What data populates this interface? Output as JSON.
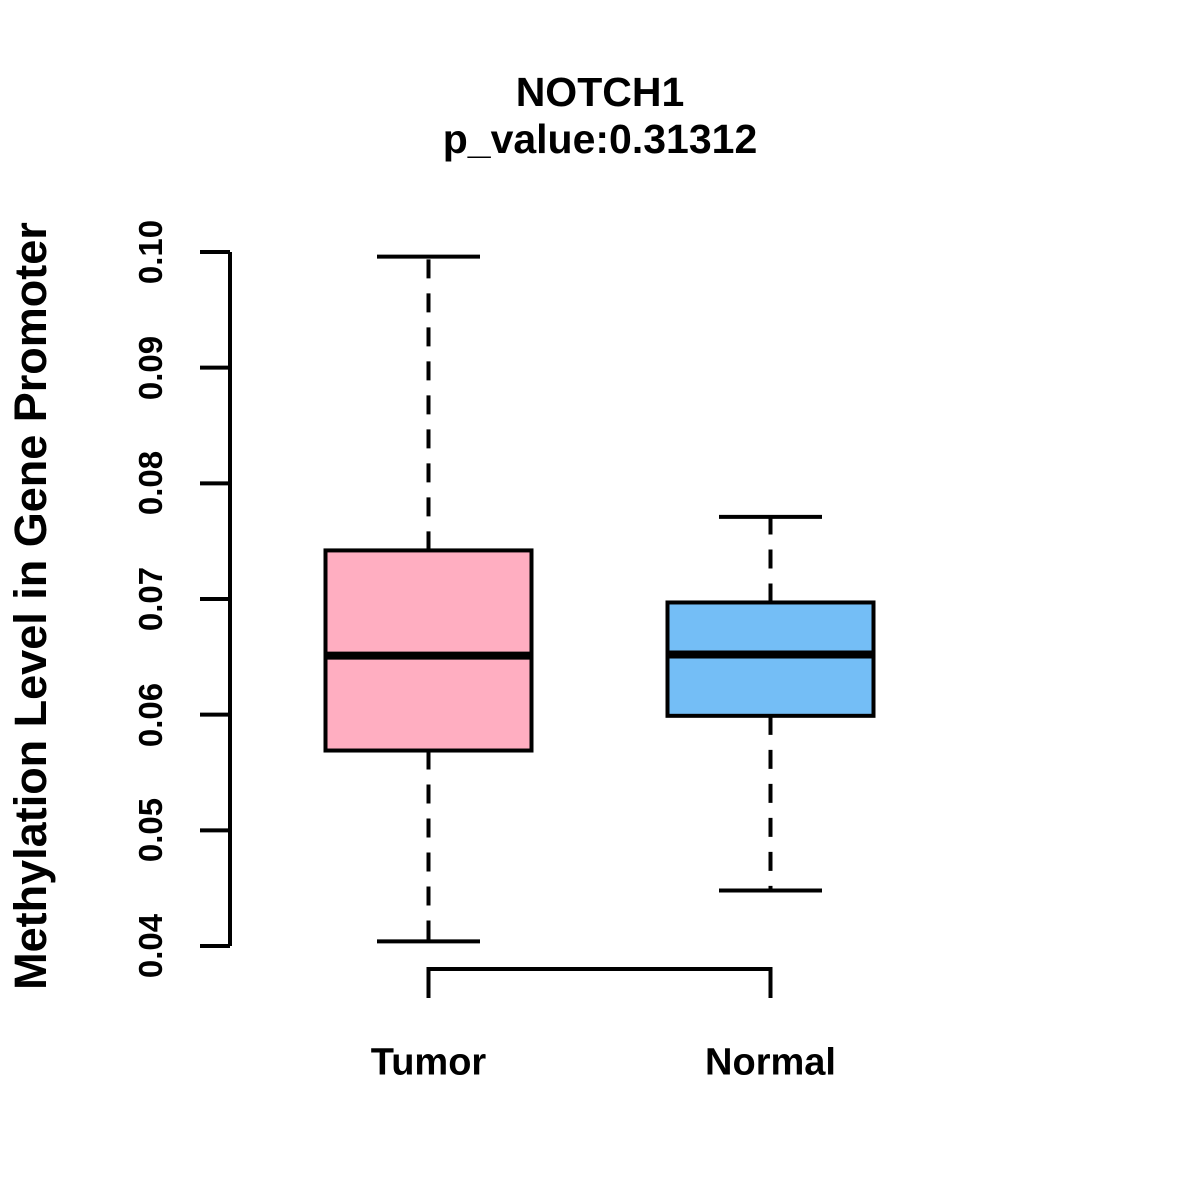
{
  "title": "NOTCH1",
  "subtitle": "p_value:0.31312",
  "ylabel": "Methylation Level in Gene Promoter",
  "colors": {
    "tumor_fill": "#FFAEC1",
    "normal_fill": "#74BEF6",
    "stroke": "#000000",
    "background": "#FFFFFF"
  },
  "chart_data": {
    "type": "boxplot",
    "title": "NOTCH1",
    "subtitle": "p_value:0.31312",
    "ylabel": "Methylation Level in Gene Promoter",
    "xlabel": "",
    "categories": [
      "Tumor",
      "Normal"
    ],
    "series": [
      {
        "name": "Tumor",
        "fill": "#FFAEC1",
        "whisker_low": 0.0404,
        "q1": 0.0569,
        "median": 0.0651,
        "q3": 0.0742,
        "whisker_high": 0.0996,
        "outliers": []
      },
      {
        "name": "Normal",
        "fill": "#74BEF6",
        "whisker_low": 0.0448,
        "q1": 0.0599,
        "median": 0.0652,
        "q3": 0.0697,
        "whisker_high": 0.0771,
        "outliers": []
      }
    ],
    "yticks": [
      "0.04",
      "0.05",
      "0.06",
      "0.07",
      "0.08",
      "0.09",
      "0.10"
    ],
    "ylim": [
      0.04,
      0.1
    ],
    "grid": false,
    "legend": "none",
    "whisker_style": "dashed"
  }
}
